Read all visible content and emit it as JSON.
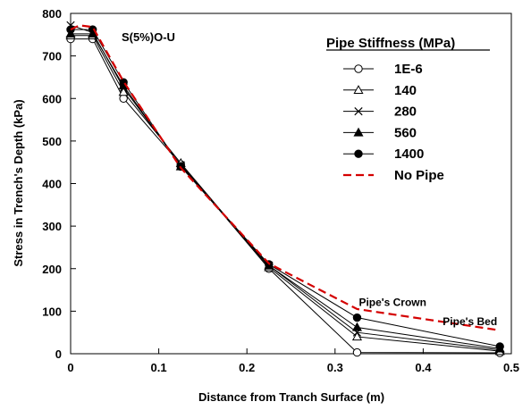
{
  "chart_data": {
    "type": "line",
    "title": "",
    "note": "S(5%)O-U",
    "xlabel": "Distance from Tranch Surface (m)",
    "ylabel": "Stress in Trench's Depth (kPa)",
    "xlim": [
      0,
      0.5
    ],
    "ylim": [
      0,
      800
    ],
    "xticks": [
      0,
      0.1,
      0.2,
      0.3,
      0.4,
      0.5
    ],
    "xtick_labels": [
      "0",
      "0.1",
      "0.2",
      "0.3",
      "0.4",
      "0.5"
    ],
    "yticks": [
      0,
      100,
      200,
      300,
      400,
      500,
      600,
      700,
      800
    ],
    "ytick_labels": [
      "0",
      "100",
      "200",
      "300",
      "400",
      "500",
      "600",
      "700",
      "800"
    ],
    "grid": false,
    "legend": {
      "title": "Pipe Stiffness (MPa)",
      "position": "top-right"
    },
    "annotations": [
      {
        "text": "Pipe's Crown",
        "x": 0.325,
        "y": 100
      },
      {
        "text": "Pipe's Bed",
        "x": 0.487,
        "y": 55
      }
    ],
    "series": [
      {
        "name": "1E-6",
        "marker": "circle-open",
        "color": "#000000",
        "x": [
          0,
          0.025,
          0.06,
          0.125,
          0.225,
          0.325,
          0.487
        ],
        "y": [
          740,
          740,
          600,
          445,
          200,
          3,
          2
        ]
      },
      {
        "name": "140",
        "marker": "triangle-open",
        "color": "#000000",
        "x": [
          0,
          0.025,
          0.06,
          0.125,
          0.225,
          0.325,
          0.487
        ],
        "y": [
          748,
          748,
          615,
          448,
          203,
          40,
          6
        ]
      },
      {
        "name": "280",
        "marker": "x",
        "color": "#000000",
        "x": [
          0,
          0.025,
          0.06,
          0.125,
          0.225,
          0.325,
          0.487
        ],
        "y": [
          772,
          755,
          625,
          443,
          207,
          50,
          9
        ]
      },
      {
        "name": "560",
        "marker": "triangle-filled",
        "color": "#000000",
        "x": [
          0,
          0.025,
          0.06,
          0.125,
          0.225,
          0.325,
          0.487
        ],
        "y": [
          752,
          752,
          630,
          440,
          207,
          62,
          12
        ]
      },
      {
        "name": "1400",
        "marker": "circle-filled",
        "color": "#000000",
        "x": [
          0,
          0.025,
          0.06,
          0.125,
          0.225,
          0.325,
          0.487
        ],
        "y": [
          762,
          762,
          638,
          440,
          210,
          85,
          17
        ]
      },
      {
        "name": "No Pipe",
        "marker": "none",
        "color": "#d40000",
        "dash": true,
        "x": [
          0,
          0.01,
          0.025,
          0.06,
          0.125,
          0.225,
          0.325,
          0.487
        ],
        "y": [
          762,
          772,
          768,
          640,
          437,
          212,
          105,
          55
        ]
      }
    ]
  }
}
